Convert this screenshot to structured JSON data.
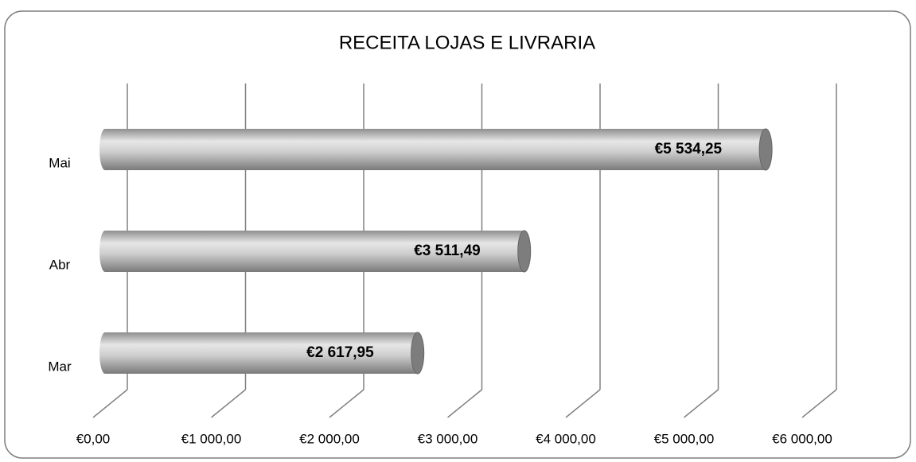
{
  "chart_data": {
    "type": "bar",
    "orientation": "horizontal",
    "title": "RECEITA LOJAS E LIVRARIA",
    "categories": [
      "Mar",
      "Abr",
      "Mai"
    ],
    "values": [
      2617.95,
      3511.49,
      5534.25
    ],
    "value_labels": [
      "€2 617,95",
      "€3 511,49",
      "€5 534,25"
    ],
    "color": "#b8b8b8",
    "xlim": [
      0,
      6000
    ],
    "xticks": [
      {
        "value": 0,
        "label": "€0,00"
      },
      {
        "value": 1000,
        "label": "€1 000,00"
      },
      {
        "value": 2000,
        "label": "€2 000,00"
      },
      {
        "value": 3000,
        "label": "€3 000,00"
      },
      {
        "value": 4000,
        "label": "€4 000,00"
      },
      {
        "value": 5000,
        "label": "€5 000,00"
      },
      {
        "value": 6000,
        "label": "€6 000,00"
      }
    ],
    "grid": true
  }
}
